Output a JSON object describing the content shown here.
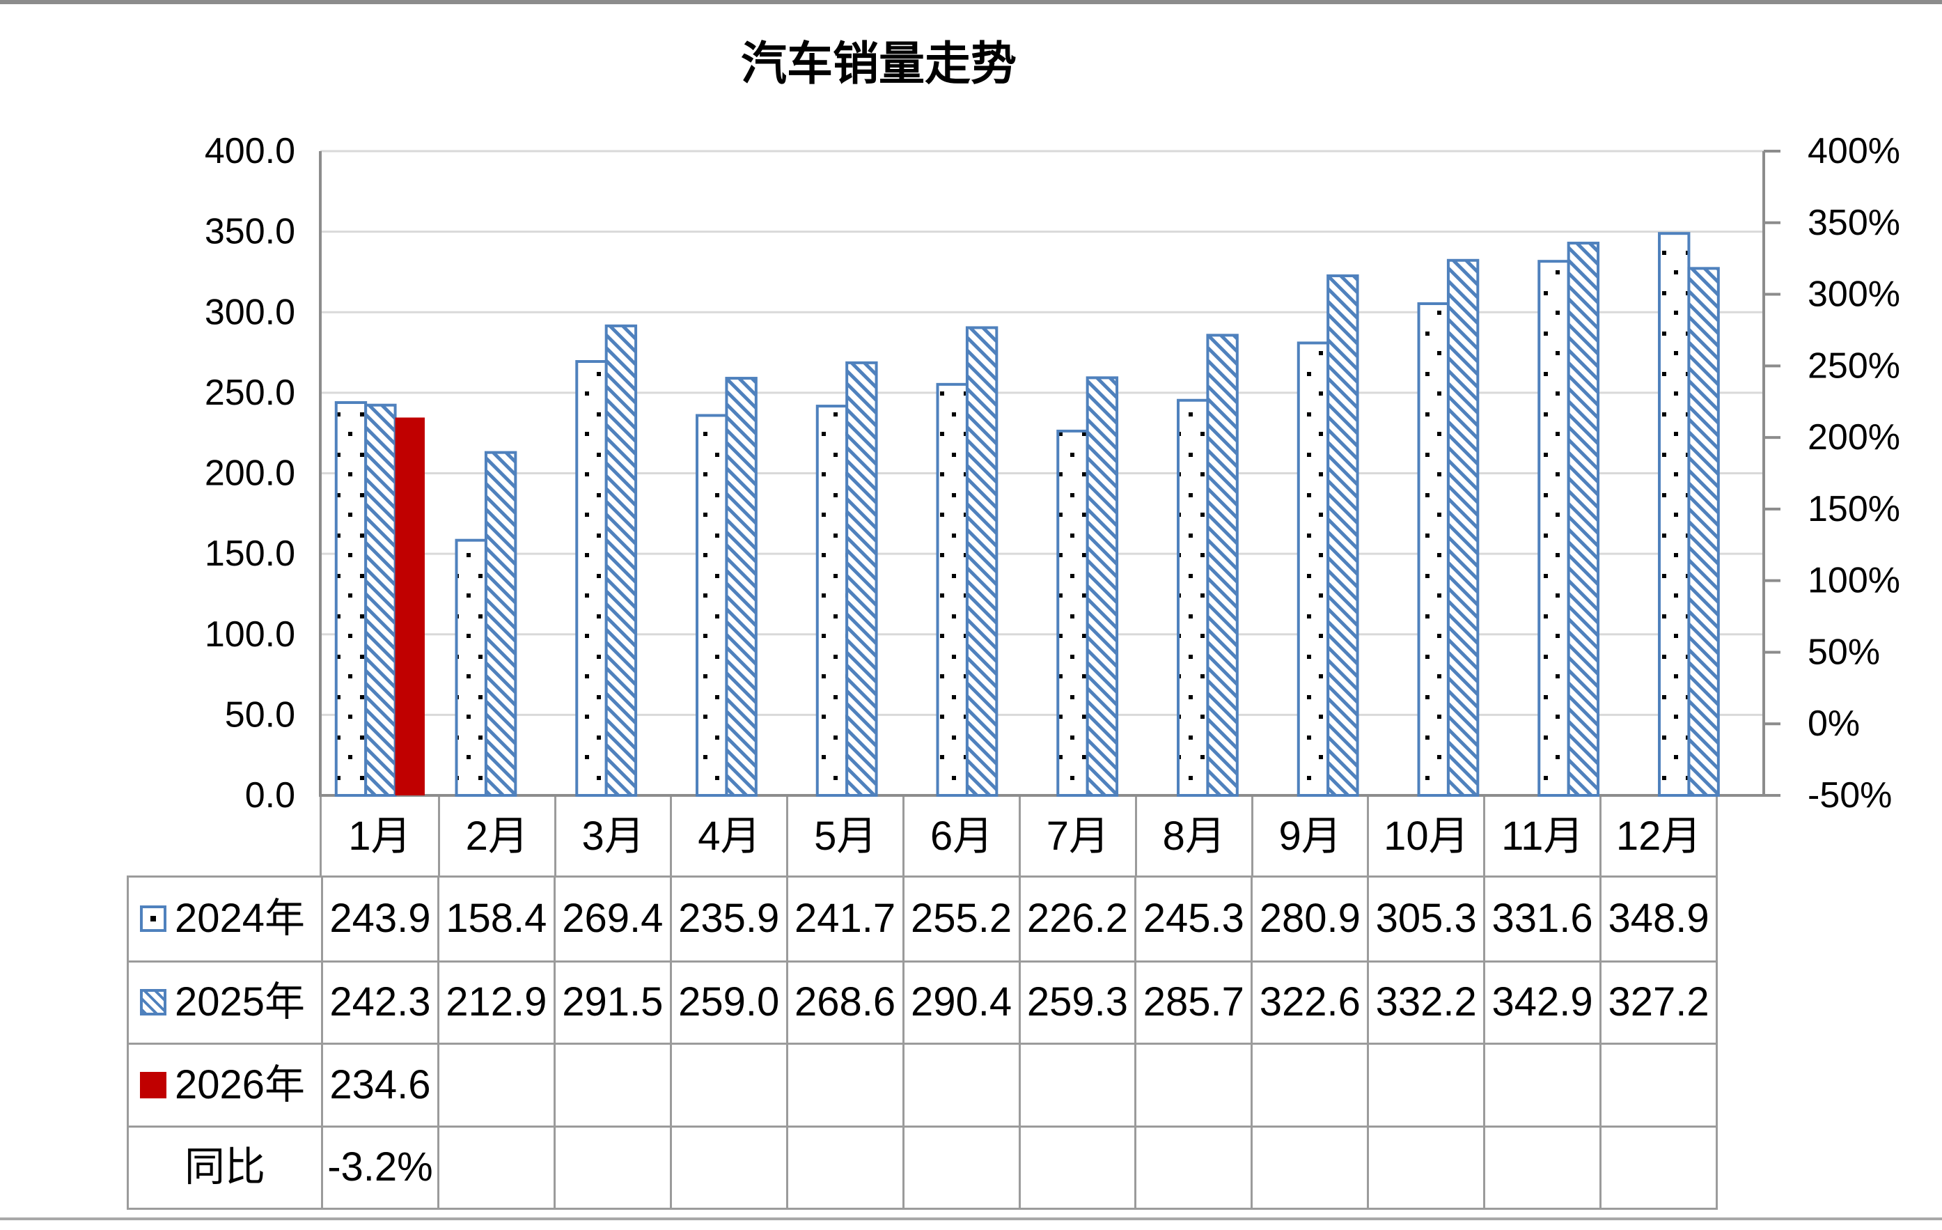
{
  "title": "汽车销量走势",
  "chart_data": {
    "type": "bar",
    "title": "汽车销量走势",
    "categories": [
      "1月",
      "2月",
      "3月",
      "4月",
      "5月",
      "6月",
      "7月",
      "8月",
      "9月",
      "10月",
      "11月",
      "12月"
    ],
    "series": [
      {
        "name": "2024年",
        "pattern": "dots",
        "color": "#4F81BD",
        "values": [
          243.9,
          158.4,
          269.4,
          235.9,
          241.7,
          255.2,
          226.2,
          245.3,
          280.9,
          305.3,
          331.6,
          348.9
        ]
      },
      {
        "name": "2025年",
        "pattern": "hatch",
        "color": "#4F81BD",
        "values": [
          242.3,
          212.9,
          291.5,
          259.0,
          268.6,
          290.4,
          259.3,
          285.7,
          322.6,
          332.2,
          342.9,
          327.2
        ]
      },
      {
        "name": "2026年",
        "pattern": "solid",
        "color": "#C00000",
        "values": [
          234.6,
          null,
          null,
          null,
          null,
          null,
          null,
          null,
          null,
          null,
          null,
          null
        ]
      }
    ],
    "left_axis": {
      "min": 0,
      "max": 400,
      "step": 50,
      "labels": [
        "400.0",
        "350.0",
        "300.0",
        "250.0",
        "200.0",
        "150.0",
        "100.0",
        "50.0",
        "0.0"
      ]
    },
    "right_axis": {
      "min": -50,
      "max": 400,
      "step": 50,
      "labels": [
        "400%",
        "350%",
        "300%",
        "250%",
        "200%",
        "150%",
        "100%",
        "50%",
        "0%",
        "-50%"
      ]
    },
    "grid": true,
    "legend_position": "table-left"
  },
  "yoy": {
    "label": "同比",
    "values": [
      "-3.2%",
      "",
      "",
      "",
      "",
      "",
      "",
      "",
      "",
      "",
      "",
      ""
    ]
  },
  "colors": {
    "bar_blue": "#4F81BD",
    "bar_red": "#C00000",
    "gridline": "#D9D9D9",
    "axis": "#8C8C8C",
    "table_border": "#9B9B9B",
    "text": "#000000"
  }
}
